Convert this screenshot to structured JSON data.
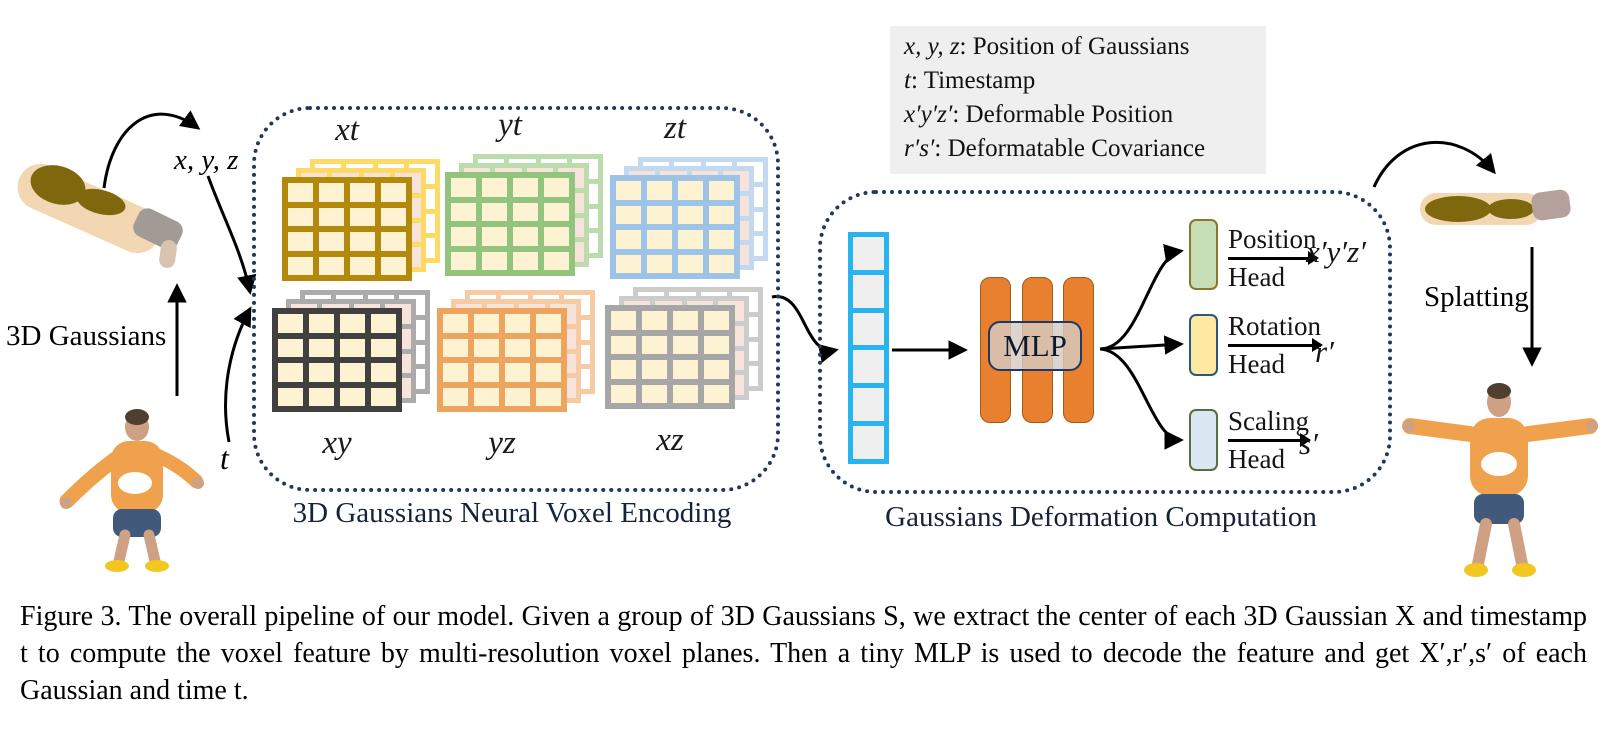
{
  "figure": {
    "legend": {
      "items": [
        {
          "term": "x, y, z",
          "desc": ": Position of Gaussians"
        },
        {
          "term": "t",
          "desc": ": Timestamp"
        },
        {
          "term": "x′y′z′",
          "desc": ": Deformable Position"
        },
        {
          "term": "r′s′",
          "desc": ": Deformatable Covariance"
        }
      ]
    },
    "inputs": {
      "gaussians_label": "3D Gaussians",
      "xyz_label": "x, y, z",
      "t_label": "t"
    },
    "encoding": {
      "title": "3D Gaussians Neural Voxel Encoding",
      "cell_color": "#fdf3d2",
      "planes": [
        {
          "label": "xt",
          "front_color": "#b3890b",
          "back_color": "#ffd966"
        },
        {
          "label": "yt",
          "front_color": "#93c47d",
          "back_color": "#bcdcae"
        },
        {
          "label": "zt",
          "front_color": "#9dc3e6",
          "back_color": "#c3d9ef"
        },
        {
          "label": "xy",
          "front_color": "#404040",
          "back_color": "#ababab"
        },
        {
          "label": "yz",
          "front_color": "#eda45f",
          "back_color": "#f6cba4"
        },
        {
          "label": "xz",
          "front_color": "#a6a6a6",
          "back_color": "#cccccc"
        }
      ]
    },
    "deformation": {
      "title": "Gaussians Deformation Computation",
      "mlp_label": "MLP",
      "heads": [
        {
          "name": "Position",
          "suffix": "Head",
          "output": "x′y′z′",
          "box_color": "#c5deb5",
          "border_color": "#8a772b"
        },
        {
          "name": "Rotation",
          "suffix": "Head",
          "output": "r′",
          "box_color": "#fde9a2",
          "border_color": "#2e567c"
        },
        {
          "name": "Scaling",
          "suffix": "Head",
          "output": "s′",
          "box_color": "#dbe8f4",
          "border_color": "#53703f"
        }
      ]
    },
    "splatting_label": "Splatting",
    "colors": {
      "dotted_border": "#22375f",
      "mlp_bar": "#e8802f",
      "vector_border": "#29b3ef",
      "legend_bg": "#efefef",
      "gaussian_blob": "#7e670c",
      "person_shirt": "#f0a14d"
    }
  },
  "caption": {
    "lines": [
      "Figure 3. The overall pipeline of our model. Given a group of 3D Gaussians S, we extract the center of each 3D Gaussian X and timestamp",
      "t to compute the voxel feature by multi-resolution voxel planes. Then a tiny MLP is used to decode the feature and get X′,r′,s′ of each",
      "Gaussian and time t."
    ]
  }
}
